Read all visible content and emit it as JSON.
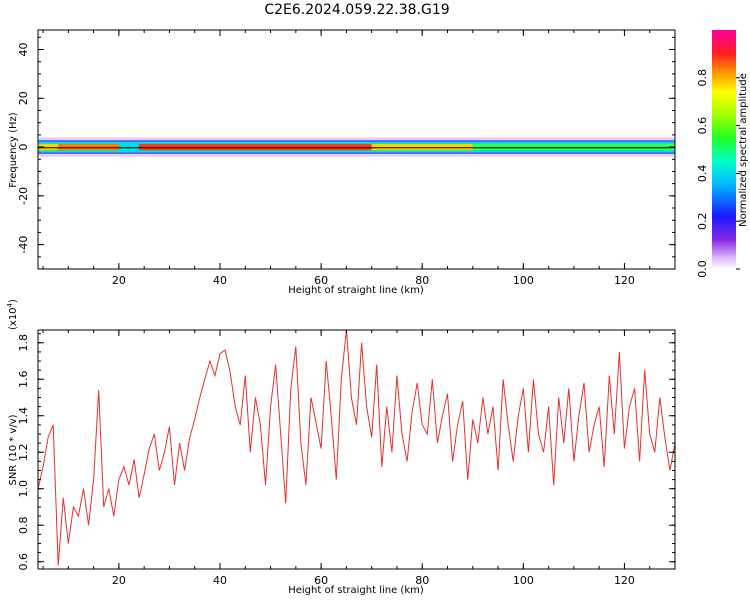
{
  "figure_title": "C2E6.2024.059.22.38.G19",
  "colors": {
    "snr_line": "#e53030",
    "frame": "#000000"
  },
  "chart_data": [
    {
      "type": "heatmap",
      "xlabel": "Height of straight line (km)",
      "ylabel": "Frequency (Hz)",
      "xlim": [
        4,
        130
      ],
      "ylim": [
        -50,
        48
      ],
      "xticks": [
        20,
        40,
        60,
        80,
        100,
        120
      ],
      "yticks": [
        -40,
        -20,
        0,
        20,
        40
      ],
      "colorbar": {
        "label": "Normalized spectral amplitude",
        "range": [
          0,
          1
        ],
        "ticks": [
          "0.0",
          "0.2",
          "0.4",
          "0.6",
          "0.8"
        ],
        "colormap": "rainbow (purple → blue → cyan → green → yellow → red → magenta)"
      },
      "band": {
        "center_freq_hz": 0,
        "core_halfwidth_hz": 1,
        "halo_halfwidth_hz": 4,
        "peak_amplitude_note": "narrow band at 0 Hz, strongest (red) from ~24 to ~70 km, green/cyan beyond 90 km"
      }
    },
    {
      "type": "line",
      "xlabel": "Height of straight line (km)",
      "ylabel": "SNR (10 * v/v)",
      "multiplier_label": "(x10",
      "multiplier_exp": "4",
      "xlim": [
        4,
        130
      ],
      "ylim": [
        0.56,
        1.87
      ],
      "xticks": [
        20,
        40,
        60,
        80,
        100,
        120
      ],
      "yticks": [
        "0.6",
        "0.8",
        "1.0",
        "1.2",
        "1.4",
        "1.6",
        "1.8"
      ],
      "series": [
        {
          "x": [
            4,
            5,
            6,
            7,
            8,
            9,
            10,
            11,
            12,
            13,
            14,
            15,
            16,
            17,
            18,
            19,
            20,
            21,
            22,
            23,
            24,
            25,
            26,
            27,
            28,
            29,
            30,
            31,
            32,
            33,
            34,
            35,
            36,
            37,
            38,
            39,
            40,
            41,
            42,
            43,
            44,
            45,
            46,
            47,
            48,
            49,
            50,
            51,
            52,
            53,
            54,
            55,
            56,
            57,
            58,
            59,
            60,
            61,
            62,
            63,
            64,
            65,
            66,
            67,
            68,
            69,
            70,
            71,
            72,
            73,
            74,
            75,
            76,
            77,
            78,
            79,
            80,
            81,
            82,
            83,
            84,
            85,
            86,
            87,
            88,
            89,
            90,
            91,
            92,
            93,
            94,
            95,
            96,
            97,
            98,
            99,
            100,
            101,
            102,
            103,
            104,
            105,
            106,
            107,
            108,
            109,
            110,
            111,
            112,
            113,
            114,
            115,
            116,
            117,
            118,
            119,
            120,
            121,
            122,
            123,
            124,
            125,
            126,
            127,
            128,
            129,
            130
          ],
          "y": [
            1.0,
            1.12,
            1.28,
            1.35,
            0.58,
            0.95,
            0.7,
            0.9,
            0.85,
            1.0,
            0.8,
            1.05,
            1.54,
            0.9,
            1.0,
            0.85,
            1.05,
            1.12,
            1.02,
            1.16,
            0.95,
            1.08,
            1.22,
            1.3,
            1.1,
            1.2,
            1.34,
            1.02,
            1.25,
            1.1,
            1.28,
            1.38,
            1.5,
            1.6,
            1.7,
            1.62,
            1.74,
            1.76,
            1.64,
            1.45,
            1.35,
            1.62,
            1.2,
            1.5,
            1.35,
            1.02,
            1.45,
            1.68,
            1.3,
            0.92,
            1.55,
            1.78,
            1.25,
            1.02,
            1.5,
            1.36,
            1.22,
            1.7,
            1.4,
            1.05,
            1.6,
            1.87,
            1.5,
            1.35,
            1.8,
            1.45,
            1.28,
            1.68,
            1.12,
            1.45,
            1.2,
            1.62,
            1.3,
            1.15,
            1.42,
            1.58,
            1.35,
            1.3,
            1.6,
            1.25,
            1.4,
            1.52,
            1.15,
            1.35,
            1.48,
            1.05,
            1.38,
            1.25,
            1.5,
            1.3,
            1.45,
            1.1,
            1.6,
            1.35,
            1.15,
            1.4,
            1.55,
            1.2,
            1.6,
            1.3,
            1.2,
            1.45,
            1.02,
            1.5,
            1.25,
            1.55,
            1.15,
            1.4,
            1.58,
            1.2,
            1.35,
            1.45,
            1.12,
            1.62,
            1.3,
            1.75,
            1.22,
            1.45,
            1.55,
            1.15,
            1.65,
            1.3,
            1.2,
            1.5,
            1.28,
            1.1,
            1.25
          ]
        }
      ]
    }
  ]
}
